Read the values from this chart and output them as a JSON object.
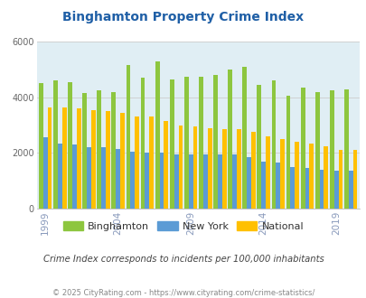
{
  "title": "Binghamton Property Crime Index",
  "subtitle": "Crime Index corresponds to incidents per 100,000 inhabitants",
  "footer": "© 2025 CityRating.com - https://www.cityrating.com/crime-statistics/",
  "years": [
    1999,
    2000,
    2001,
    2002,
    2003,
    2004,
    2005,
    2006,
    2007,
    2008,
    2009,
    2010,
    2011,
    2012,
    2013,
    2014,
    2015,
    2016,
    2017,
    2018,
    2019,
    2020
  ],
  "binghamton": [
    4500,
    4600,
    4550,
    4150,
    4250,
    4200,
    5150,
    4700,
    5300,
    4650,
    4750,
    4750,
    4800,
    5000,
    5100,
    4450,
    4600,
    4050,
    4350,
    4200,
    4250,
    4300
  ],
  "new_york": [
    2550,
    2350,
    2300,
    2200,
    2200,
    2150,
    2050,
    2000,
    2000,
    1950,
    1950,
    1950,
    1950,
    1950,
    1850,
    1700,
    1650,
    1500,
    1450,
    1400,
    1350,
    1350
  ],
  "national": [
    3650,
    3650,
    3600,
    3550,
    3500,
    3450,
    3300,
    3300,
    3150,
    3000,
    2950,
    2900,
    2850,
    2850,
    2750,
    2600,
    2500,
    2400,
    2350,
    2250,
    2100,
    2100
  ],
  "bar_colors": {
    "binghamton": "#8DC63F",
    "new_york": "#5B9BD5",
    "national": "#FFC000"
  },
  "background_color": "#E0EEF4",
  "ylim": [
    0,
    6000
  ],
  "yticks": [
    0,
    2000,
    4000,
    6000
  ],
  "grid_color": "#cccccc",
  "title_color": "#1F5FA6",
  "subtitle_color": "#444444",
  "footer_color": "#888888",
  "tick_label_color": "#8899BB",
  "bar_width": 0.3
}
